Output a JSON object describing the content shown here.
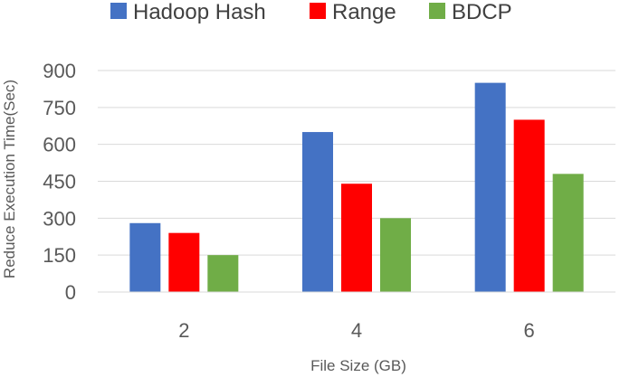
{
  "chart_data": {
    "type": "bar",
    "categories": [
      "2",
      "4",
      "6"
    ],
    "series": [
      {
        "name": "Hadoop Hash",
        "color": "#4472c4",
        "values": [
          280,
          650,
          850
        ]
      },
      {
        "name": "Range",
        "color": "#ff0000",
        "values": [
          240,
          440,
          700
        ]
      },
      {
        "name": "BDCP",
        "color": "#70ad47",
        "values": [
          150,
          300,
          480
        ]
      }
    ],
    "xlabel": "File Size (GB)",
    "ylabel": "Reduce Execution Time(Sec)",
    "ylim": [
      0,
      900
    ],
    "yticks": [
      0,
      150,
      300,
      450,
      600,
      750,
      900
    ],
    "grid": true,
    "legend_position": "top"
  }
}
